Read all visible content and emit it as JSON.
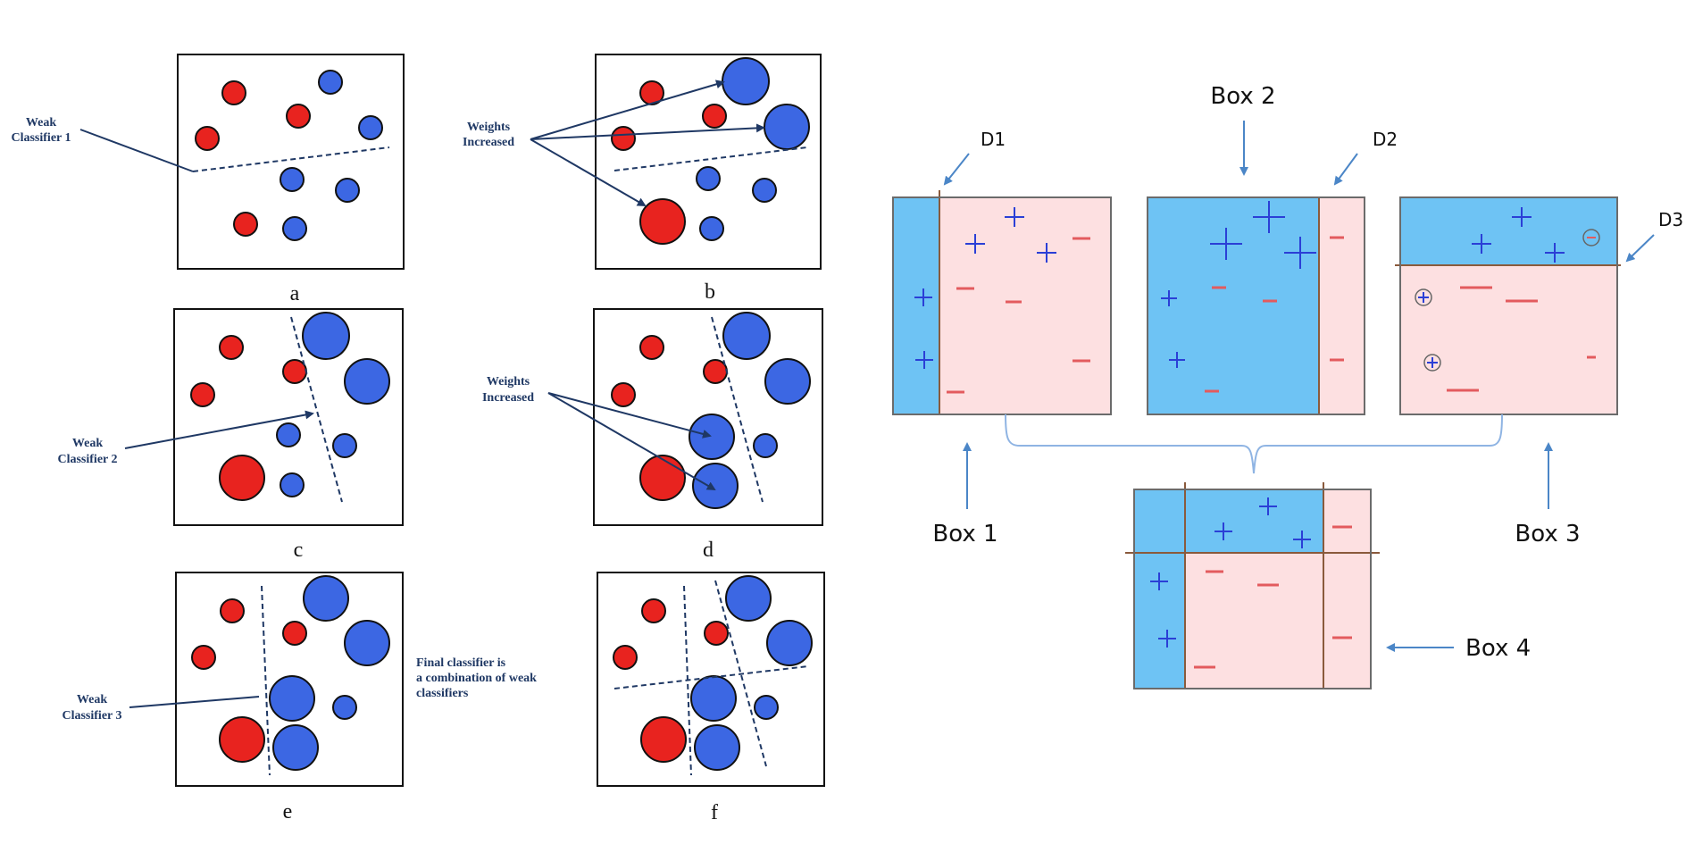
{
  "left": {
    "panels": [
      {
        "letter": "a"
      },
      {
        "letter": "b"
      },
      {
        "letter": "c"
      },
      {
        "letter": "d"
      },
      {
        "letter": "e"
      },
      {
        "letter": "f"
      }
    ],
    "annotations": {
      "weak1": [
        "Weak",
        "Classifier 1"
      ],
      "weights_b": [
        "Weights",
        "Increased"
      ],
      "weak2": [
        "Weak",
        "Classifier 2"
      ],
      "weights_d": [
        "Weights",
        "Increased"
      ],
      "weak3": [
        "Weak",
        "Classifier 3"
      ],
      "final": [
        "Final classifier is",
        "a combination of weak",
        "classifiers"
      ]
    },
    "colors": {
      "red": "#e8231f",
      "blue": "#3c67e3",
      "outline": "#111111",
      "line": "#1f3864"
    }
  },
  "right": {
    "box_labels": {
      "box1": "Box 1",
      "box2": "Box 2",
      "box3": "Box 3",
      "box4": "Box 4"
    },
    "d_labels": {
      "d1": "D1",
      "d2": "D2",
      "d3": "D3"
    },
    "colors": {
      "blue_region": "#6ec3f4",
      "pink_region": "#fde0e1",
      "plus": "#2b3fd6",
      "minus": "#e35b5e",
      "split": "#8a5a3c",
      "arrow": "#4b86c7"
    }
  }
}
